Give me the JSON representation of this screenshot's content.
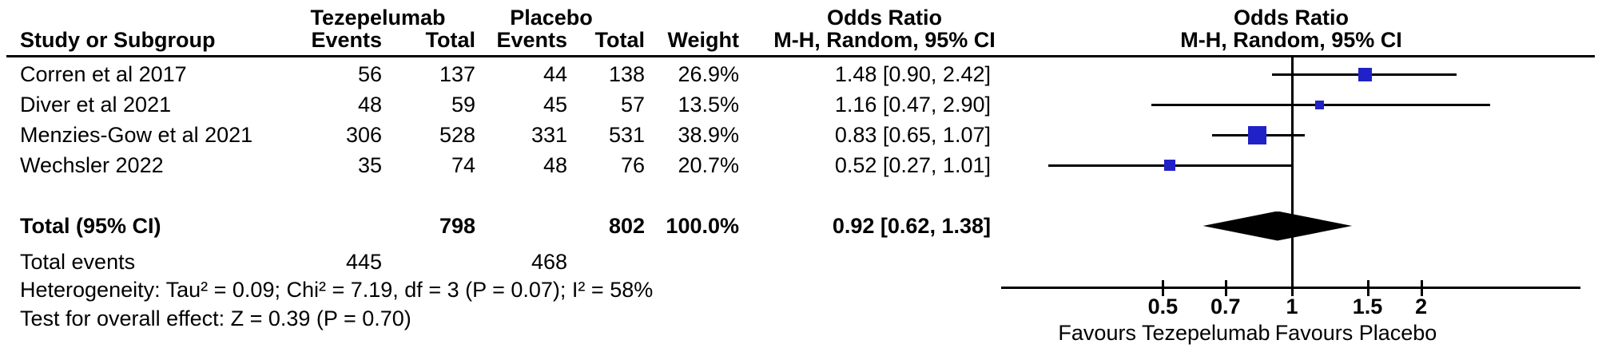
{
  "table": {
    "study_col_header": "Study or Subgroup",
    "group_headers": {
      "treatment": "Tezepelumab",
      "control": "Placebo",
      "or_text_col_line1": "Odds Ratio",
      "or_text_col_line2": "M-H, Random, 95% CI",
      "or_plot_col_line1": "Odds Ratio",
      "or_plot_col_line2": "M-H, Random, 95% CI"
    },
    "col_headers": {
      "events": "Events",
      "total": "Total",
      "weight": "Weight"
    },
    "rows": [
      {
        "study": "Corren et al 2017",
        "t_events": "56",
        "t_total": "137",
        "c_events": "44",
        "c_total": "138",
        "weight": "26.9%",
        "or_ci": "1.48 [0.90, 2.42]"
      },
      {
        "study": "Diver et al 2021",
        "t_events": "48",
        "t_total": "59",
        "c_events": "45",
        "c_total": "57",
        "weight": "13.5%",
        "or_ci": "1.16 [0.47, 2.90]"
      },
      {
        "study": "Menzies-Gow et al 2021",
        "t_events": "306",
        "t_total": "528",
        "c_events": "331",
        "c_total": "531",
        "weight": "38.9%",
        "or_ci": "0.83 [0.65, 1.07]"
      },
      {
        "study": "Wechsler 2022",
        "t_events": "35",
        "t_total": "74",
        "c_events": "48",
        "c_total": "76",
        "weight": "20.7%",
        "or_ci": "0.52 [0.27, 1.01]"
      }
    ],
    "total_row": {
      "label": "Total (95% CI)",
      "t_total": "798",
      "c_total": "802",
      "weight": "100.0%",
      "or_ci": "0.92 [0.62, 1.38]"
    },
    "total_events_row": {
      "label": "Total events",
      "t_events": "445",
      "c_events": "468"
    },
    "heterogeneity": "Heterogeneity: Tau² = 0.09; Chi² = 7.19, df = 3 (P = 0.07); I² = 58%",
    "overall_effect": "Test for overall effect: Z = 0.39 (P = 0.70)"
  },
  "plot": {
    "favours_left": "Favours Tezepelumab",
    "favours_right": "Favours Placebo",
    "marker_color": "#2121C8",
    "diamond_color": "#000000",
    "line_color": "#000000"
  },
  "chart_data": {
    "type": "forest",
    "effect_measure": "Odds Ratio, M-H, Random, 95% CI",
    "x_scale": "log",
    "x_ticks": [
      0.5,
      0.7,
      1,
      1.5,
      2
    ],
    "x_tick_labels": [
      "0.5",
      "0.7",
      "1",
      "1.5",
      "2"
    ],
    "null_line": 1,
    "axis_label_left": "Favours Tezepelumab",
    "axis_label_right": "Favours Placebo",
    "studies": [
      {
        "name": "Corren et al 2017",
        "or": 1.48,
        "ci_low": 0.9,
        "ci_high": 2.42,
        "weight_pct": 26.9,
        "t_events": 56,
        "t_total": 137,
        "c_events": 44,
        "c_total": 138
      },
      {
        "name": "Diver et al 2021",
        "or": 1.16,
        "ci_low": 0.47,
        "ci_high": 2.9,
        "weight_pct": 13.5,
        "t_events": 48,
        "t_total": 59,
        "c_events": 45,
        "c_total": 57
      },
      {
        "name": "Menzies-Gow et al 2021",
        "or": 0.83,
        "ci_low": 0.65,
        "ci_high": 1.07,
        "weight_pct": 38.9,
        "t_events": 306,
        "t_total": 528,
        "c_events": 331,
        "c_total": 531
      },
      {
        "name": "Wechsler 2022",
        "or": 0.52,
        "ci_low": 0.27,
        "ci_high": 1.01,
        "weight_pct": 20.7,
        "t_events": 35,
        "t_total": 74,
        "c_events": 48,
        "c_total": 76
      }
    ],
    "pooled": {
      "label": "Total (95% CI)",
      "or": 0.92,
      "ci_low": 0.62,
      "ci_high": 1.38,
      "weight_pct": 100.0,
      "t_total": 798,
      "c_total": 802
    },
    "heterogeneity": {
      "tau2": 0.09,
      "chi2": 7.19,
      "df": 3,
      "p": 0.07,
      "i2_pct": 58
    },
    "overall_effect": {
      "z": 0.39,
      "p": 0.7
    }
  }
}
